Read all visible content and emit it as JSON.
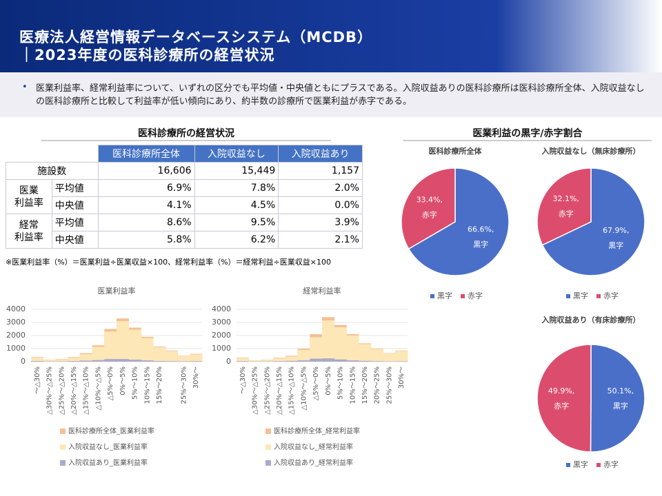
{
  "header": {
    "title": "医療法人経営情報データベースシステム（MCDB）",
    "subtitle": "｜2023年度の医科診療所の経営状況"
  },
  "summary": "医業利益率、経常利益率について、いずれの区分でも平均値・中央値ともにプラスである。入院収益ありの医科診療所は医科診療所全体、入院収益なしの医科診療所と比較して利益率が低い傾向にあり、約半数の診療所で医業利益が赤字である。",
  "table": {
    "title": "医科診療所の経営状況",
    "columns": [
      "医科診療所全体",
      "入院収益なし",
      "入院収益あり"
    ],
    "count": {
      "label": "施設数",
      "cells": [
        "16,606",
        "15,449",
        "1,157"
      ]
    },
    "groups": [
      {
        "name": "医業\n利益率",
        "rows": [
          {
            "label": "平均値",
            "cells": [
              "6.9%",
              "7.8%",
              "2.0%"
            ]
          },
          {
            "label": "中央値",
            "cells": [
              "4.1%",
              "4.5%",
              "0.0%"
            ]
          }
        ]
      },
      {
        "name": "経常\n利益率",
        "rows": [
          {
            "label": "平均値",
            "cells": [
              "8.6%",
              "9.5%",
              "3.9%"
            ]
          },
          {
            "label": "中央値",
            "cells": [
              "5.8%",
              "6.2%",
              "2.1%"
            ]
          }
        ]
      }
    ],
    "note": "※医業利益率（%）＝医業利益÷医業収益×100、経常利益率（%）＝経常利益÷医業収益×100"
  },
  "pie_section_title": "医業利益の黒字/赤字割合",
  "chart_data": [
    {
      "type": "hist",
      "title": "医業利益率",
      "categories": [
        "～△30%",
        "△30%～△25%",
        "△25%～△20%",
        "△20%～△15%",
        "△15%～△10%",
        "△10%～△5%",
        "△5%～0%",
        "0%～5%",
        "5%～10%",
        "10%～15%",
        "15%～20%",
        null,
        "25%～30%",
        "30%～"
      ],
      "series": [
        {
          "name": "医科診療所全体_医業利益率",
          "color": "#f6bf94",
          "values": [
            350,
            150,
            200,
            350,
            650,
            1250,
            2500,
            3300,
            2600,
            1900,
            1150,
            850,
            450,
            600
          ]
        },
        {
          "name": "入院収益なし_医業利益率",
          "color": "#fde7b6",
          "values": [
            300,
            130,
            170,
            300,
            570,
            1130,
            2300,
            3100,
            2450,
            1800,
            1100,
            810,
            420,
            560
          ]
        },
        {
          "name": "入院収益あり_医業利益率",
          "color": "#a9a9cb",
          "values": [
            50,
            20,
            30,
            50,
            80,
            120,
            200,
            200,
            150,
            100,
            50,
            40,
            30,
            40
          ]
        }
      ],
      "ylim": [
        0,
        4000
      ],
      "yticks": [
        0,
        1000,
        2000,
        3000,
        4000
      ]
    },
    {
      "type": "hist",
      "title": "経常利益率",
      "categories": [
        "～△30%",
        "△30%～△25%",
        "△25%～△20%",
        "△20%～△15%",
        "△15%～△10%",
        "△10%～△5%",
        "△5%～0%",
        "0%～5%",
        "5%～10%",
        "10%～15%",
        "15%～20%",
        "20%～25%",
        "25%～30%",
        "30%～"
      ],
      "series": [
        {
          "name": "医科診療所全体_経常利益率",
          "color": "#f6bf94",
          "values": [
            300,
            100,
            150,
            300,
            450,
            1000,
            2100,
            3400,
            2800,
            2100,
            1400,
            1000,
            650,
            850
          ]
        },
        {
          "name": "入院収益なし_経常利益率",
          "color": "#fde7b6",
          "values": [
            260,
            85,
            130,
            260,
            390,
            900,
            1870,
            3150,
            2630,
            2000,
            1340,
            960,
            630,
            820
          ]
        },
        {
          "name": "入院収益あり_経常利益率",
          "color": "#a9a9cb",
          "values": [
            40,
            15,
            20,
            40,
            60,
            100,
            230,
            250,
            170,
            100,
            60,
            40,
            20,
            30
          ]
        }
      ],
      "ylim": [
        0,
        4000
      ],
      "yticks": [
        0,
        1000,
        2000,
        3000,
        4000
      ]
    },
    {
      "type": "pie",
      "title": "医科診療所全体",
      "categories": [
        "黒字",
        "赤字"
      ],
      "values": [
        66.6,
        33.4
      ],
      "value_labels": [
        "66.6%,",
        "33.4%,"
      ],
      "colors": [
        "#4a6fc9",
        "#dc4d6d"
      ]
    },
    {
      "type": "pie",
      "title": "入院収益なし（無床診療所）",
      "categories": [
        "黒字",
        "赤字"
      ],
      "values": [
        67.9,
        32.1
      ],
      "value_labels": [
        "67.9%,",
        "32.1%,"
      ],
      "colors": [
        "#4a6fc9",
        "#dc4d6d"
      ]
    },
    {
      "type": "pie",
      "title": "入院収益あり（有床診療所）",
      "categories": [
        "黒字",
        "赤字"
      ],
      "values": [
        50.1,
        49.9
      ],
      "value_labels": [
        "50.1%,",
        "49.9%,"
      ],
      "colors": [
        "#4a6fc9",
        "#dc4d6d"
      ]
    }
  ]
}
